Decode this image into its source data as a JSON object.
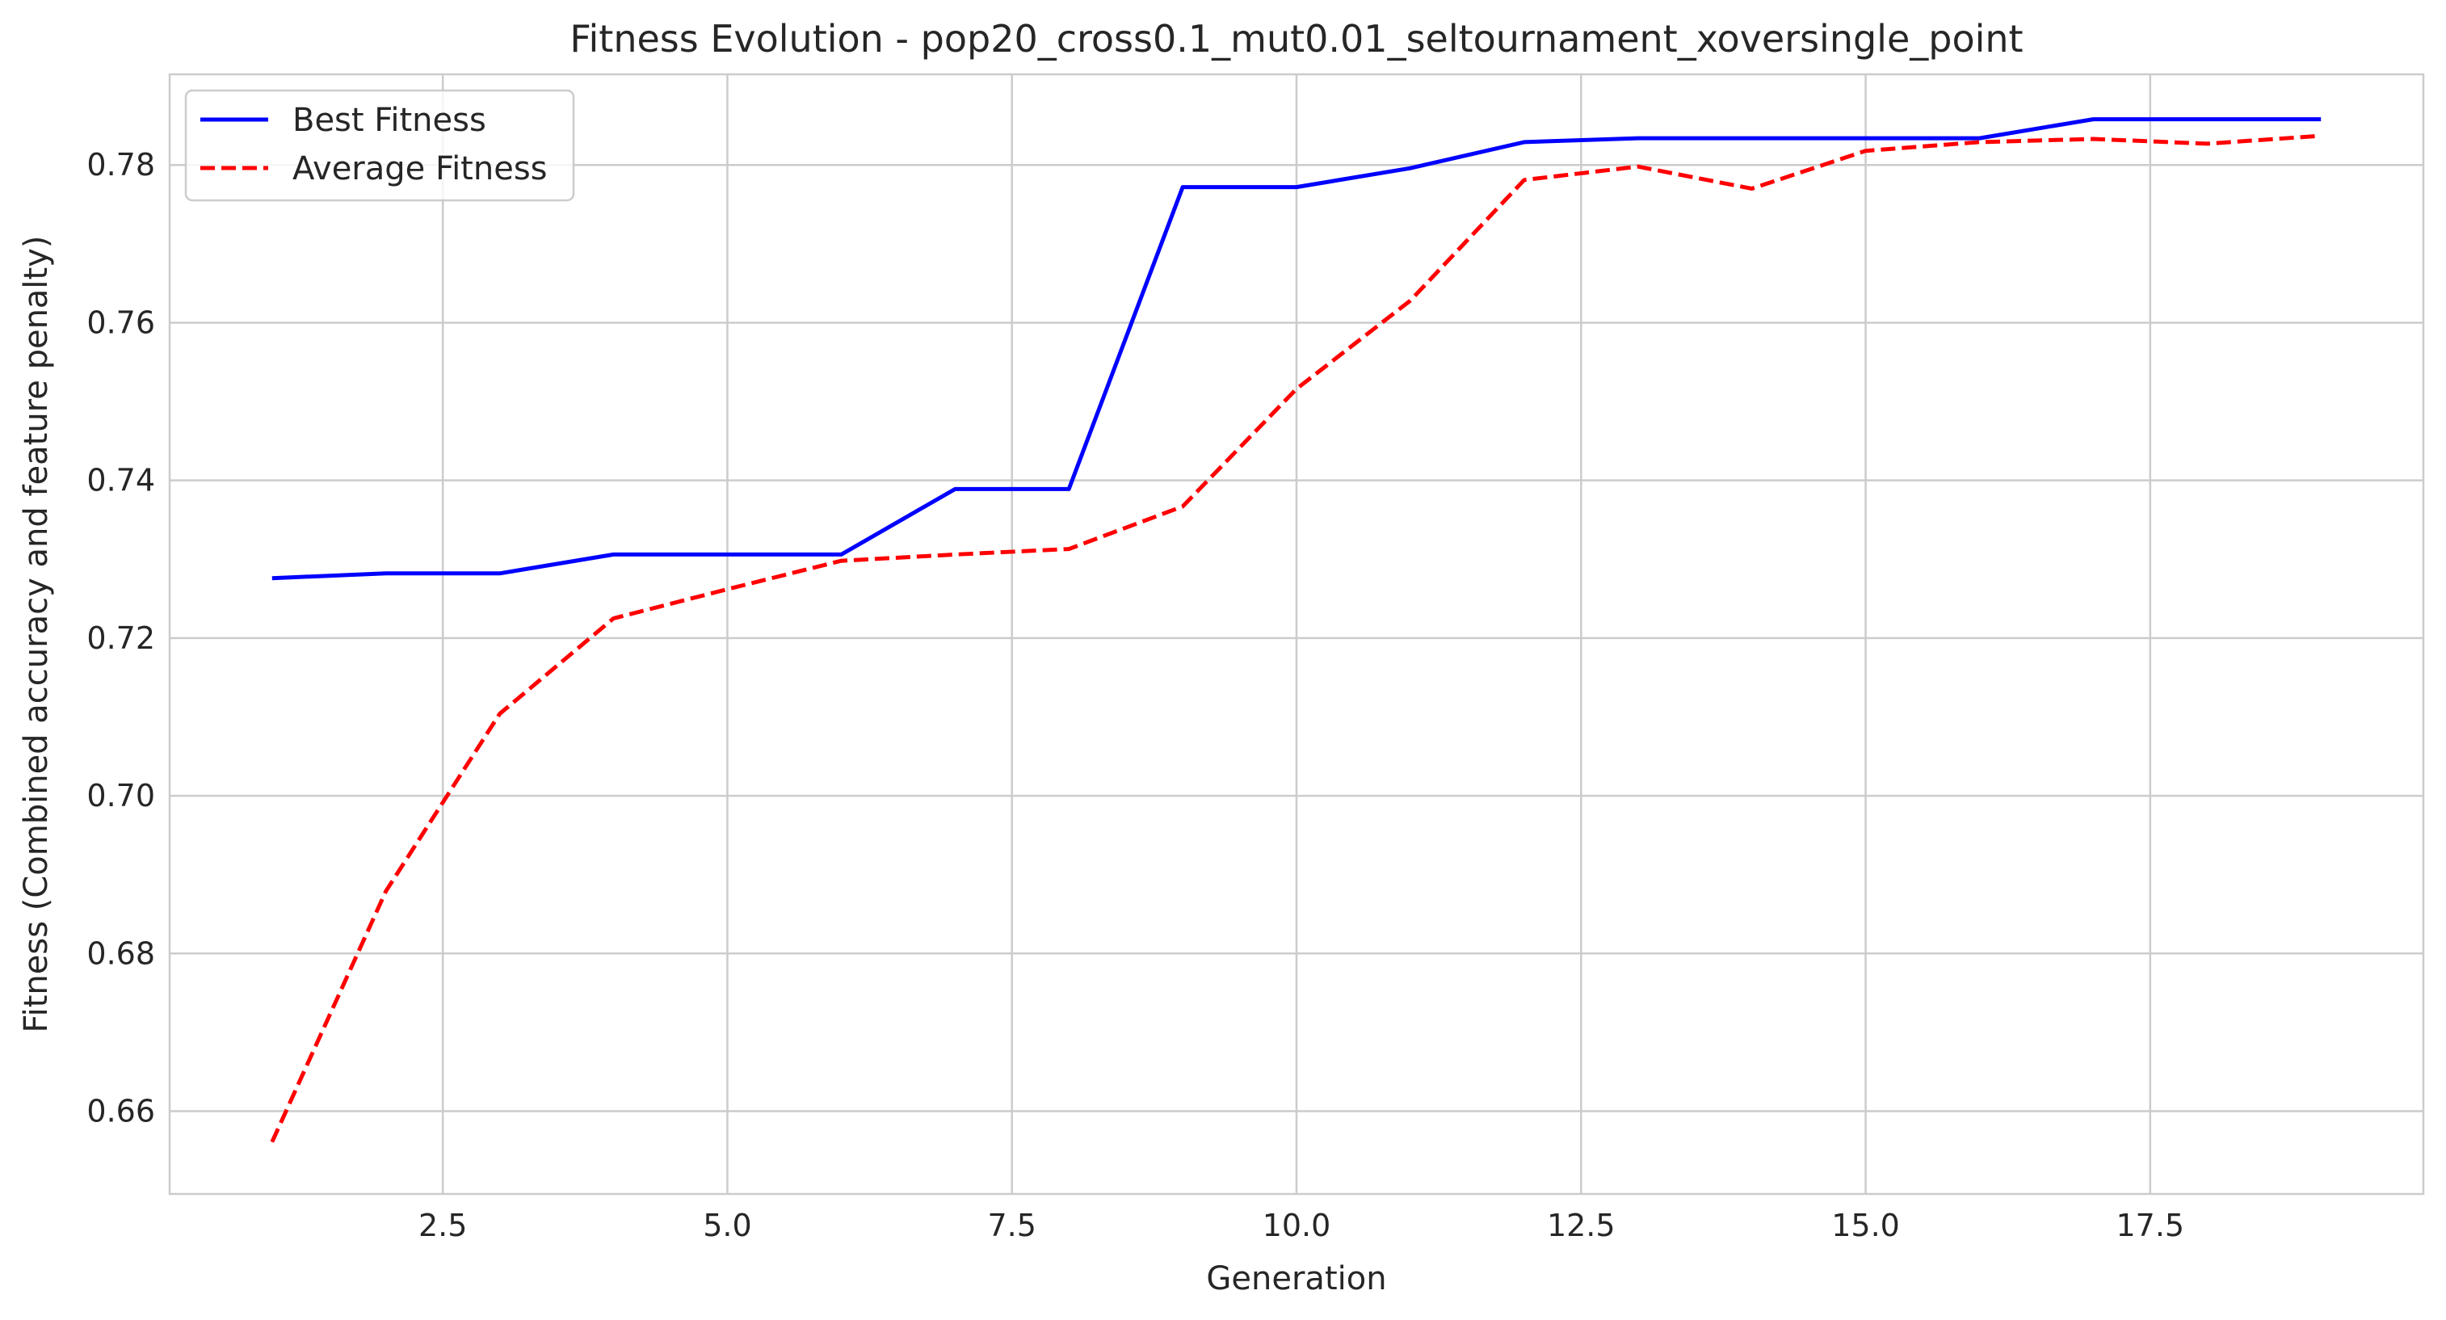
{
  "chart_data": {
    "type": "line",
    "title": "Fitness Evolution - pop20_cross0.1_mut0.01_seltournament_xoversingle_point",
    "xlabel": "Generation",
    "ylabel": "Fitness (Combined accuracy and feature penalty)",
    "xlim": [
      0.1,
      19.9
    ],
    "ylim": [
      0.6495,
      0.7915
    ],
    "xticks": [
      2.5,
      5.0,
      7.5,
      10.0,
      12.5,
      15.0,
      17.5
    ],
    "xtick_labels": [
      "2.5",
      "5.0",
      "7.5",
      "10.0",
      "12.5",
      "15.0",
      "17.5"
    ],
    "yticks": [
      0.66,
      0.68,
      0.7,
      0.72,
      0.74,
      0.76,
      0.78
    ],
    "ytick_labels": [
      "0.66",
      "0.68",
      "0.70",
      "0.72",
      "0.74",
      "0.76",
      "0.78"
    ],
    "grid": true,
    "legend_position": "top-left",
    "x": [
      1,
      2,
      3,
      4,
      5,
      6,
      7,
      8,
      9,
      10,
      11,
      12,
      13,
      14,
      15,
      16,
      17,
      18,
      19
    ],
    "series": [
      {
        "name": "Best Fitness",
        "color": "#0000ff",
        "style": "solid",
        "values": [
          0.7276,
          0.7282,
          0.7282,
          0.7306,
          0.7306,
          0.7306,
          0.7389,
          0.7389,
          0.7772,
          0.7772,
          0.7796,
          0.7829,
          0.7834,
          0.7834,
          0.7834,
          0.7834,
          0.7858,
          0.7858,
          0.7858
        ]
      },
      {
        "name": "Average Fitness",
        "color": "#ff0000",
        "style": "dashed",
        "values": [
          0.6561,
          0.6879,
          0.7104,
          0.7225,
          0.7262,
          0.7298,
          0.7306,
          0.7313,
          0.7367,
          0.7516,
          0.7628,
          0.7781,
          0.7798,
          0.777,
          0.7818,
          0.7829,
          0.7833,
          0.7827,
          0.7837
        ]
      }
    ]
  }
}
